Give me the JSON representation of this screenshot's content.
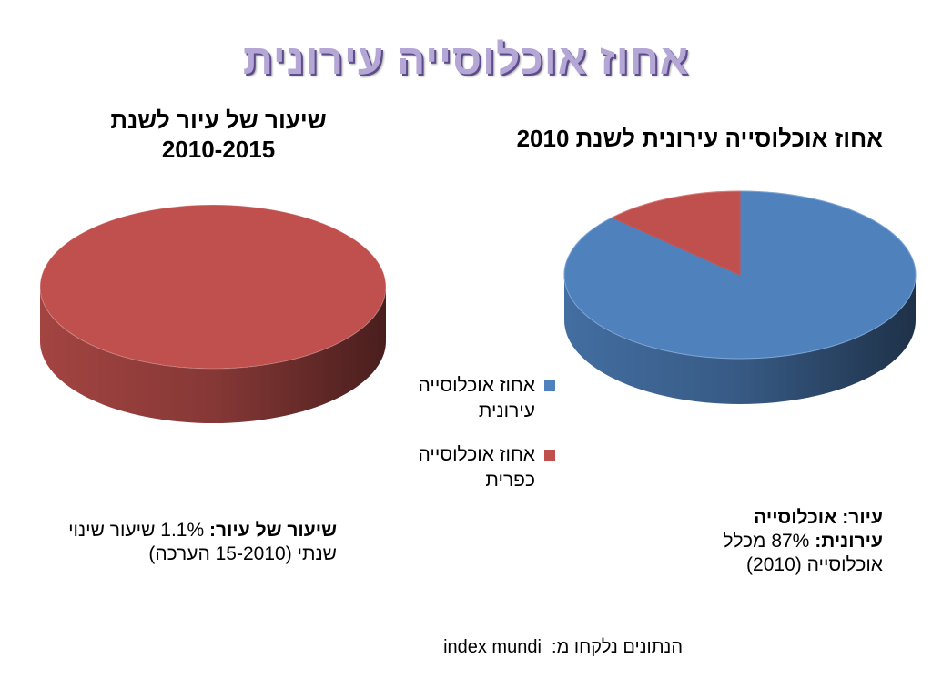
{
  "slide": {
    "title": "אחוז אוכלוסייה עירונית",
    "source_label": "הנתונים נלקחו מ:",
    "source_name": "index mundi"
  },
  "left": {
    "title_line1": "שיעור של עיור לשנת",
    "title_line2": "2010-2015",
    "note_bold": "שיעור של עיור:",
    "note_rest": " 1.1% שיעור שינוי שנתי (15-2010 הערכה)"
  },
  "right": {
    "title": "אחוז אוכלוסייה עירונית לשנת 2010",
    "note_bold1": "עיור: אוכלוסייה",
    "note_bold2": "עירונית:",
    "note_rest": " 87% מכלל אוכלוסייה (2010)"
  },
  "legend": [
    {
      "label": "אחוז אוכלוסייה עירונית",
      "color": "#4f81bd"
    },
    {
      "label": "אחוז אוכלוסייה כפרית",
      "color": "#c0504d"
    }
  ],
  "chart_data": [
    {
      "type": "pie",
      "title": "שיעור של עיור לשנת 2010-2015",
      "style": "3d",
      "slices": [
        {
          "label": "",
          "value": 100,
          "color": "#c0504d"
        }
      ]
    },
    {
      "type": "pie",
      "title": "אחוז אוכלוסייה עירונית לשנת 2010",
      "style": "3d",
      "slices": [
        {
          "label": "אחוז אוכלוסייה עירונית",
          "value": 87,
          "color": "#4f81bd"
        },
        {
          "label": "אחוז אוכלוסייה כפרית",
          "value": 13,
          "color": "#c0504d"
        }
      ]
    }
  ]
}
